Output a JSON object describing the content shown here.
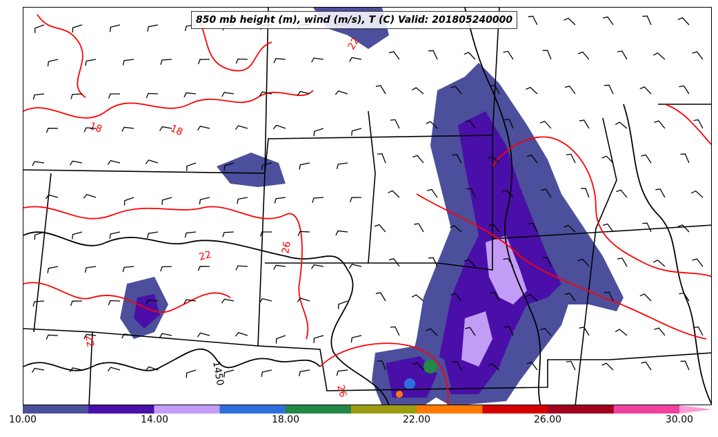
{
  "title": "850 mb height (m), wind (m/s), T (C) Valid: 201805240000",
  "contour_labels": {
    "temp": [
      "18",
      "18",
      "22",
      "26",
      "22",
      "26",
      "22"
    ],
    "height": [
      "1450"
    ]
  },
  "colorbar": {
    "tick_labels": [
      "10.00",
      "14.00",
      "18.00",
      "22.00",
      "26.00",
      "30.00"
    ],
    "colors": [
      "#4b4f9c",
      "#4a0fa8",
      "#c29cf5",
      "#2f6fdd",
      "#238746",
      "#9c9c12",
      "#ff7a00",
      "#d40000",
      "#a0001e",
      "#f040a0",
      "#ff9ad6"
    ]
  },
  "colors": {
    "temperature_contour": "#ff0000",
    "height_contour": "#000000",
    "border": "#000000"
  }
}
